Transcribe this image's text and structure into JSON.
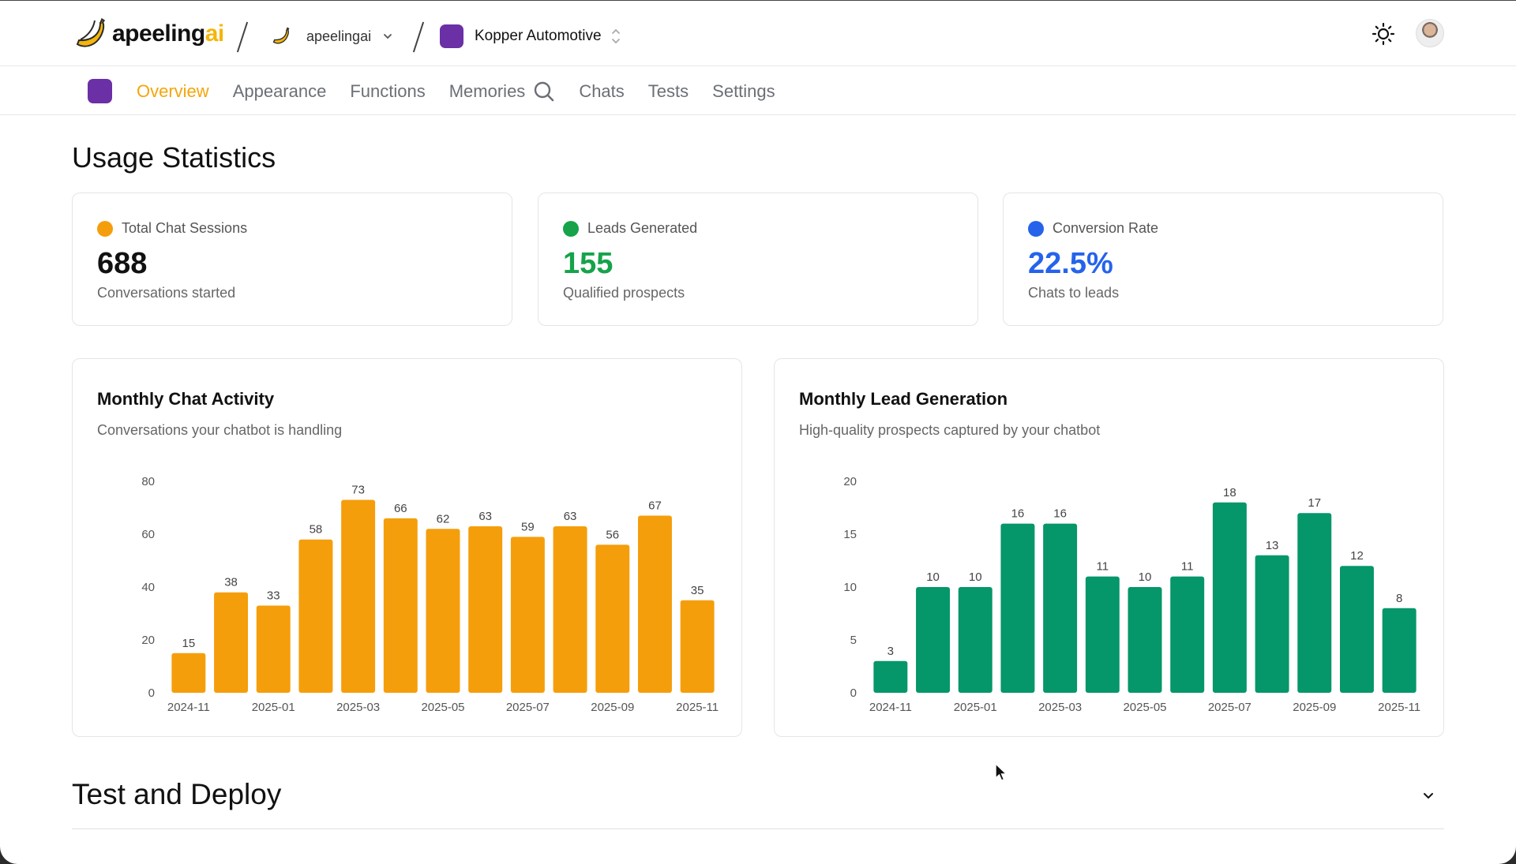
{
  "header": {
    "brand_main": "apeeling",
    "brand_ai": "ai",
    "org_name": "apeelingai",
    "project_name": "Kopper Automotive",
    "brand_color": "#f5b50a",
    "project_color": "#6b2fa6"
  },
  "tabs": [
    {
      "label": "Overview",
      "active": true
    },
    {
      "label": "Appearance"
    },
    {
      "label": "Functions"
    },
    {
      "label": "Memories"
    },
    {
      "label": "Chats"
    },
    {
      "label": "Tests"
    },
    {
      "label": "Settings"
    }
  ],
  "usage": {
    "heading": "Usage Statistics",
    "cards": [
      {
        "label": "Total Chat Sessions",
        "value": "688",
        "sub": "Conversations started",
        "color": "#f59e0b",
        "value_color": "#111111"
      },
      {
        "label": "Leads Generated",
        "value": "155",
        "sub": "Qualified prospects",
        "color": "#16a34a",
        "value_color": "#16a34a"
      },
      {
        "label": "Conversion Rate",
        "value": "22.5%",
        "sub": "Chats to leads",
        "color": "#2563eb",
        "value_color": "#2563eb"
      }
    ]
  },
  "chart_data": [
    {
      "type": "bar",
      "title": "Monthly Chat Activity",
      "subtitle": "Conversations your chatbot is handling",
      "categories": [
        "2024-11",
        "2024-12",
        "2025-01",
        "2025-02",
        "2025-03",
        "2025-04",
        "2025-05",
        "2025-06",
        "2025-07",
        "2025-08",
        "2025-09",
        "2025-10",
        "2025-11"
      ],
      "tick_labels": [
        "2024-11",
        "",
        "2025-01",
        "",
        "2025-03",
        "",
        "2025-05",
        "",
        "2025-07",
        "",
        "2025-09",
        "",
        "2025-11"
      ],
      "values": [
        15,
        38,
        33,
        58,
        73,
        66,
        62,
        63,
        59,
        63,
        56,
        67,
        35
      ],
      "yticks": [
        0,
        20,
        40,
        60,
        80
      ],
      "ylim": [
        0,
        80
      ],
      "color": "#f59e0b",
      "grid": false
    },
    {
      "type": "bar",
      "title": "Monthly Lead Generation",
      "subtitle": "High-quality prospects captured by your chatbot",
      "categories": [
        "2024-11",
        "2024-12",
        "2025-01",
        "2025-02",
        "2025-03",
        "2025-04",
        "2025-05",
        "2025-06",
        "2025-07",
        "2025-08",
        "2025-09",
        "2025-10",
        "2025-11"
      ],
      "tick_labels": [
        "2024-11",
        "",
        "2025-01",
        "",
        "2025-03",
        "",
        "2025-05",
        "",
        "2025-07",
        "",
        "2025-09",
        "",
        "2025-11"
      ],
      "values": [
        3,
        10,
        10,
        16,
        16,
        11,
        10,
        11,
        18,
        13,
        17,
        12,
        8
      ],
      "yticks": [
        0,
        5,
        10,
        15,
        20
      ],
      "ylim": [
        0,
        20
      ],
      "color": "#059669",
      "grid": false
    }
  ],
  "deploy": {
    "heading": "Test and Deploy"
  },
  "icons": [
    "banana-icon",
    "chevron-down-icon",
    "chevron-updown-icon",
    "search-icon",
    "sun-icon",
    "cursor-icon"
  ]
}
